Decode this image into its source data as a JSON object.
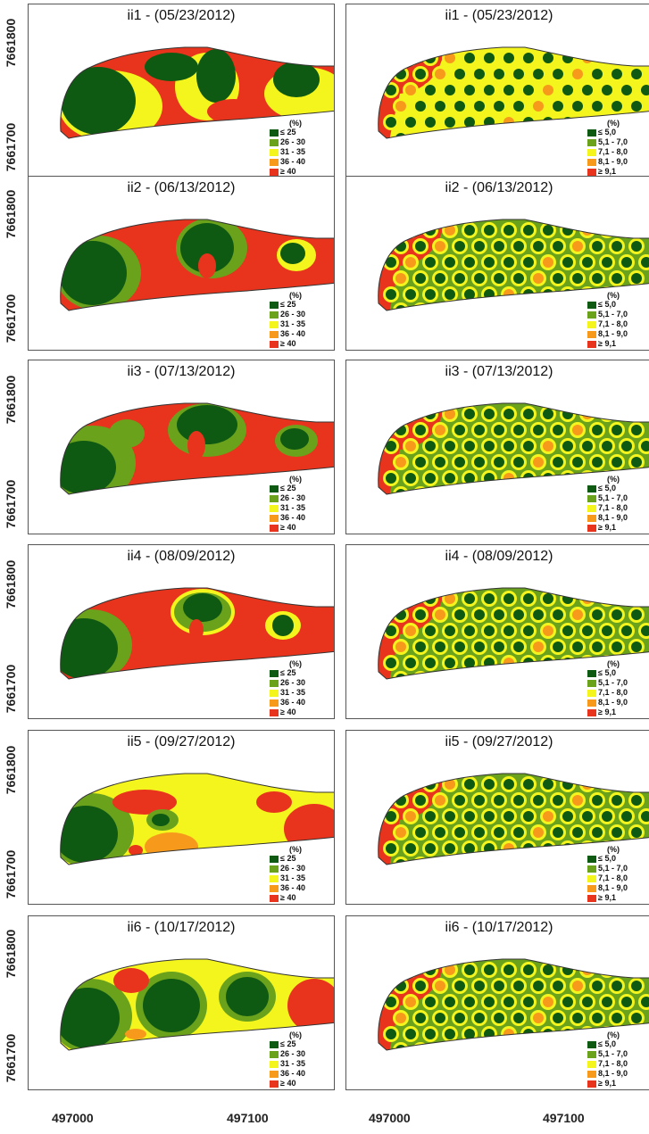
{
  "y_axis_labels": [
    "7661800",
    "7661700"
  ],
  "x_axis_labels": [
    "497000",
    "497100"
  ],
  "legend_unit": "(%)",
  "left_legend": [
    {
      "label": "≤ 25",
      "color": "#0f5a12"
    },
    {
      "label": "26 - 30",
      "color": "#6aa21c"
    },
    {
      "label": "31 - 35",
      "color": "#f5f51e"
    },
    {
      "label": "36 - 40",
      "color": "#f79a1c"
    },
    {
      "label": "≥ 40",
      "color": "#e8341c"
    }
  ],
  "right_legend": [
    {
      "label": "≤ 5,0",
      "color": "#0f5a12"
    },
    {
      "label": "5,1 - 7,0",
      "color": "#6aa21c"
    },
    {
      "label": "7,1 - 8,0",
      "color": "#f5f51e"
    },
    {
      "label": "8,1 - 9,0",
      "color": "#f79a1c"
    },
    {
      "label": "≥ 9,1",
      "color": "#e8341c"
    }
  ],
  "panels": [
    {
      "title": "ii1 - (05/23/2012)"
    },
    {
      "title": "ii2 - (06/13/2012)"
    },
    {
      "title": "ii3 - (07/13/2012)"
    },
    {
      "title": "ii4 - (08/09/2012)"
    },
    {
      "title": "ii5 - (09/27/2012)"
    },
    {
      "title": "ii6 - (10/17/2012)"
    }
  ]
}
